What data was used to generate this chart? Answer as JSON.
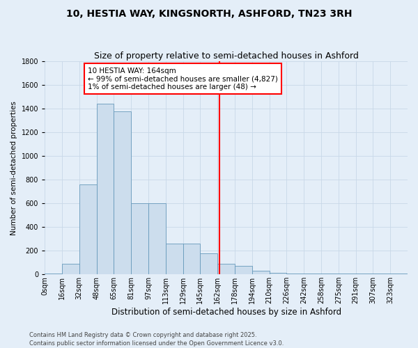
{
  "title": "10, HESTIA WAY, KINGSNORTH, ASHFORD, TN23 3RH",
  "subtitle": "Size of property relative to semi-detached houses in Ashford",
  "xlabel": "Distribution of semi-detached houses by size in Ashford",
  "ylabel": "Number of semi-detached properties",
  "bin_labels": [
    "0sqm",
    "16sqm",
    "32sqm",
    "48sqm",
    "65sqm",
    "81sqm",
    "97sqm",
    "113sqm",
    "129sqm",
    "145sqm",
    "162sqm",
    "178sqm",
    "194sqm",
    "210sqm",
    "226sqm",
    "242sqm",
    "258sqm",
    "275sqm",
    "291sqm",
    "307sqm",
    "323sqm"
  ],
  "bar_heights": [
    5,
    90,
    760,
    1440,
    1380,
    600,
    600,
    260,
    260,
    180,
    90,
    70,
    30,
    10,
    5,
    5,
    5,
    5,
    5,
    5,
    5
  ],
  "bar_color": "#ccdded",
  "bar_edgecolor": "#6699bb",
  "vline_x_bin": 10,
  "vline_color": "red",
  "annotation_text": "10 HESTIA WAY: 164sqm\n← 99% of semi-detached houses are smaller (4,827)\n1% of semi-detached houses are larger (48) →",
  "annotation_box_color": "white",
  "annotation_box_edgecolor": "red",
  "ylim": [
    0,
    1800
  ],
  "yticks": [
    0,
    200,
    400,
    600,
    800,
    1000,
    1200,
    1400,
    1600,
    1800
  ],
  "grid_color": "#c8d8e8",
  "bg_color": "#e4eef8",
  "footer_text": "Contains HM Land Registry data © Crown copyright and database right 2025.\nContains public sector information licensed under the Open Government Licence v3.0.",
  "title_fontsize": 10,
  "subtitle_fontsize": 9,
  "xlabel_fontsize": 8.5,
  "ylabel_fontsize": 7.5,
  "tick_fontsize": 7,
  "annotation_fontsize": 7.5,
  "footer_fontsize": 6
}
